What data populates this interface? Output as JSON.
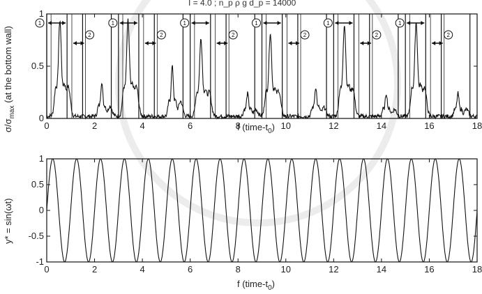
{
  "figure_caption_top": "I = 4.0 ; n_p ρ g d_p  = 14000",
  "chart_data": [
    {
      "type": "line",
      "id": "stress",
      "xlabel": "f (time-t",
      "xlabel_sub": "0",
      "xlabel_end": ")",
      "ylabel": "σ/σ",
      "ylabel_sub": "max",
      "ylabel_rest": " (at the bottom wall)",
      "xlim": [
        0,
        18
      ],
      "ylim": [
        0,
        1
      ],
      "xticks": [
        0,
        2,
        4,
        6,
        8,
        10,
        12,
        14,
        16,
        18
      ],
      "xtick_labels": [
        "0",
        "2",
        "4",
        "6",
        "8",
        "10",
        "12",
        "14",
        "16",
        "18"
      ],
      "yticks": [
        0,
        0.5,
        1
      ],
      "ytick_labels": [
        "0",
        "0.5",
        "1"
      ],
      "cycle_starts": [
        0,
        3,
        6,
        9,
        12,
        15
      ],
      "peaks": [
        {
          "x": 0.55,
          "y": 0.92
        },
        {
          "x": 2.3,
          "y": 0.33
        },
        {
          "x": 3.4,
          "y": 0.92
        },
        {
          "x": 5.25,
          "y": 0.48
        },
        {
          "x": 6.45,
          "y": 0.75
        },
        {
          "x": 8.4,
          "y": 0.22
        },
        {
          "x": 9.35,
          "y": 0.8
        },
        {
          "x": 11.25,
          "y": 0.28
        },
        {
          "x": 12.45,
          "y": 0.88
        },
        {
          "x": 14.2,
          "y": 0.22
        },
        {
          "x": 15.45,
          "y": 0.9
        },
        {
          "x": 17.2,
          "y": 0.22
        }
      ],
      "markers": [
        "1",
        "2"
      ]
    },
    {
      "type": "line",
      "id": "sine",
      "xlabel": "f (time-t",
      "xlabel_sub": "0",
      "xlabel_end": ")",
      "ylabel": "y* = sin(ωt)",
      "xlim": [
        0,
        18
      ],
      "ylim": [
        -1,
        1
      ],
      "frequency": 1,
      "xticks": [
        0,
        2,
        4,
        6,
        8,
        10,
        12,
        14,
        16,
        18
      ],
      "xtick_labels": [
        "0",
        "2",
        "4",
        "6",
        "8",
        "10",
        "12",
        "14",
        "16",
        "18"
      ],
      "yticks": [
        -1,
        -0.5,
        0,
        0.5,
        1
      ],
      "ytick_labels": [
        "-1",
        "-0.5",
        "0",
        "0.5",
        "1"
      ]
    }
  ]
}
